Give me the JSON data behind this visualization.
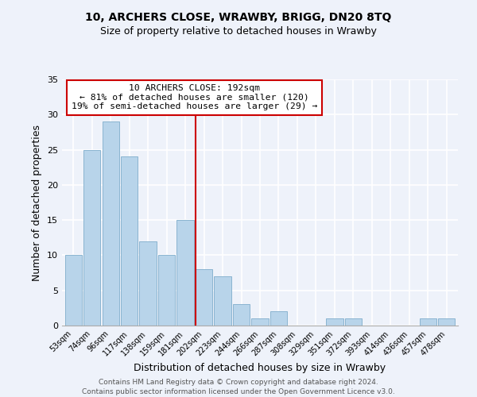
{
  "title": "10, ARCHERS CLOSE, WRAWBY, BRIGG, DN20 8TQ",
  "subtitle": "Size of property relative to detached houses in Wrawby",
  "xlabel": "Distribution of detached houses by size in Wrawby",
  "ylabel": "Number of detached properties",
  "bar_color": "#b8d4ea",
  "bar_edge_color": "#8ab4d0",
  "categories": [
    "53sqm",
    "74sqm",
    "96sqm",
    "117sqm",
    "138sqm",
    "159sqm",
    "181sqm",
    "202sqm",
    "223sqm",
    "244sqm",
    "266sqm",
    "287sqm",
    "308sqm",
    "329sqm",
    "351sqm",
    "372sqm",
    "393sqm",
    "414sqm",
    "436sqm",
    "457sqm",
    "478sqm"
  ],
  "values": [
    10,
    25,
    29,
    24,
    12,
    10,
    15,
    8,
    7,
    3,
    1,
    2,
    0,
    0,
    1,
    1,
    0,
    0,
    0,
    1,
    1
  ],
  "vline_color": "#cc0000",
  "vline_index": 7,
  "annotation_title": "10 ARCHERS CLOSE: 192sqm",
  "annotation_line1": "← 81% of detached houses are smaller (120)",
  "annotation_line2": "19% of semi-detached houses are larger (29) →",
  "annotation_box_color": "#ffffff",
  "annotation_box_edge": "#cc0000",
  "ylim": [
    0,
    35
  ],
  "yticks": [
    0,
    5,
    10,
    15,
    20,
    25,
    30,
    35
  ],
  "footer1": "Contains HM Land Registry data © Crown copyright and database right 2024.",
  "footer2": "Contains public sector information licensed under the Open Government Licence v3.0.",
  "bg_color": "#eef2fa"
}
